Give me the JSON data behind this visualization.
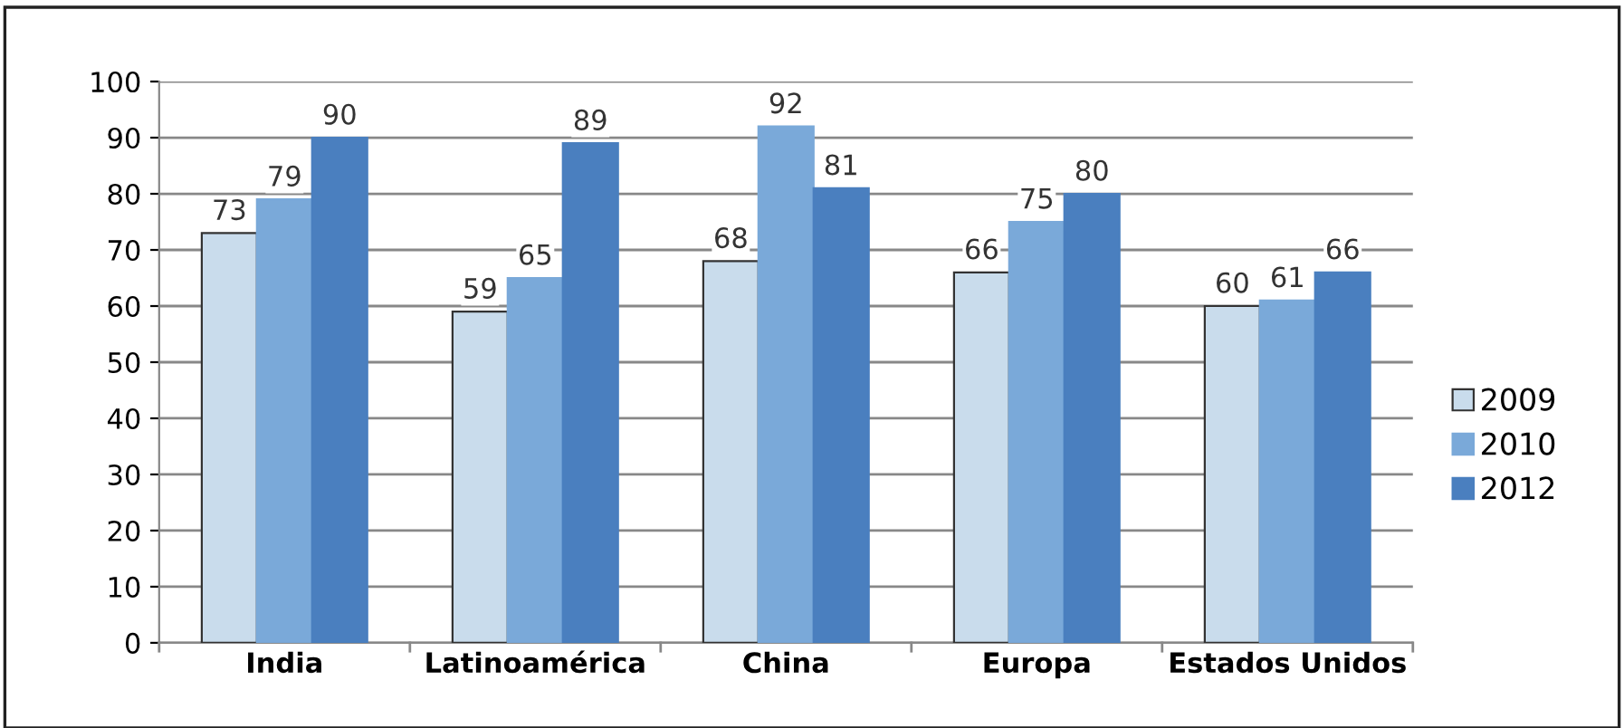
{
  "chart_data": {
    "type": "bar",
    "categories": [
      "India",
      "Latinoamérica",
      "China",
      "Europa",
      "Estados Unidos"
    ],
    "series": [
      {
        "name": "2009",
        "color": "#c9dcec",
        "values": [
          73,
          59,
          68,
          66,
          60
        ]
      },
      {
        "name": "2010",
        "color": "#7aa9d9",
        "values": [
          79,
          65,
          92,
          75,
          61
        ]
      },
      {
        "name": "2012",
        "color": "#4a7fbf",
        "values": [
          90,
          89,
          81,
          80,
          66
        ]
      }
    ],
    "ylim": [
      0,
      100
    ],
    "yticks": [
      0,
      10,
      20,
      30,
      40,
      50,
      60,
      70,
      80,
      90,
      100
    ],
    "grid": "y",
    "legend": "right",
    "data_labels": true
  }
}
